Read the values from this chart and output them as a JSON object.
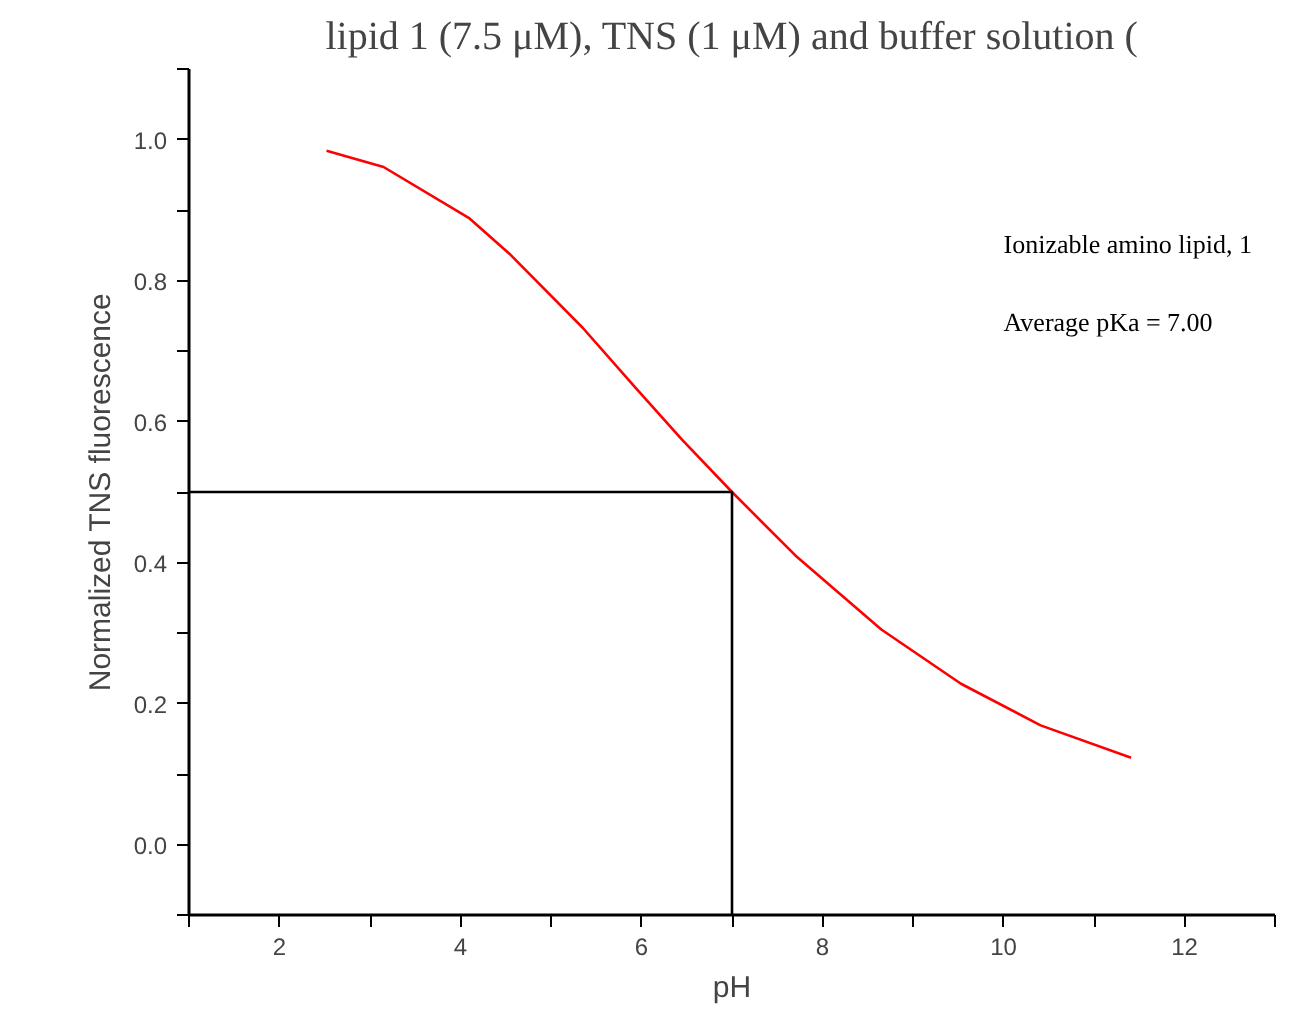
{
  "chart_data": {
    "type": "line",
    "title": "lipid 1 (7.5 μM), TNS (1 μM) and buffer solution (",
    "xlabel": "pH",
    "ylabel": "Normalized TNS fluorescence",
    "annotations": [
      "Ionizable amino lipid, 1",
      "Average pKa = 7.00"
    ],
    "xlim": [
      1,
      13
    ],
    "ylim": [
      -0.1,
      1.1
    ],
    "xticks": [
      {
        "value": 1,
        "label": null
      },
      2,
      {
        "value": 3,
        "label": null
      },
      4,
      {
        "value": 5,
        "label": null
      },
      6,
      {
        "value": 7,
        "label": null
      },
      8,
      {
        "value": 9,
        "label": null
      },
      10,
      {
        "value": 11,
        "label": null
      },
      12,
      {
        "value": 13,
        "label": null
      }
    ],
    "yticks": [
      {
        "value": -0.1,
        "label": null
      },
      {
        "value": 0.0,
        "label": "0.0"
      },
      {
        "value": 0.1,
        "label": null
      },
      0.2,
      {
        "value": 0.3,
        "label": null
      },
      0.4,
      {
        "value": 0.5,
        "label": null
      },
      0.6,
      {
        "value": 0.7,
        "label": null
      },
      0.8,
      {
        "value": 0.9,
        "label": null
      },
      {
        "value": 1.0,
        "label": "1.0"
      },
      {
        "value": 1.1,
        "label": null
      }
    ],
    "grid": false,
    "series": [
      {
        "color": "#ff0000",
        "x": [
          2.52,
          3.15,
          4.1,
          4.54,
          5.35,
          5.94,
          6.45,
          7.0,
          7.7,
          8.65,
          9.53,
          10.41,
          11.41
        ],
        "values": [
          0.984,
          0.961,
          0.888,
          0.838,
          0.733,
          0.647,
          0.574,
          0.5,
          0.41,
          0.305,
          0.228,
          0.169,
          0.123
        ]
      },
      {
        "color": "#000000",
        "x": [
          1,
          7,
          7
        ],
        "values": [
          0.5,
          0.5,
          -0.1
        ]
      }
    ]
  }
}
